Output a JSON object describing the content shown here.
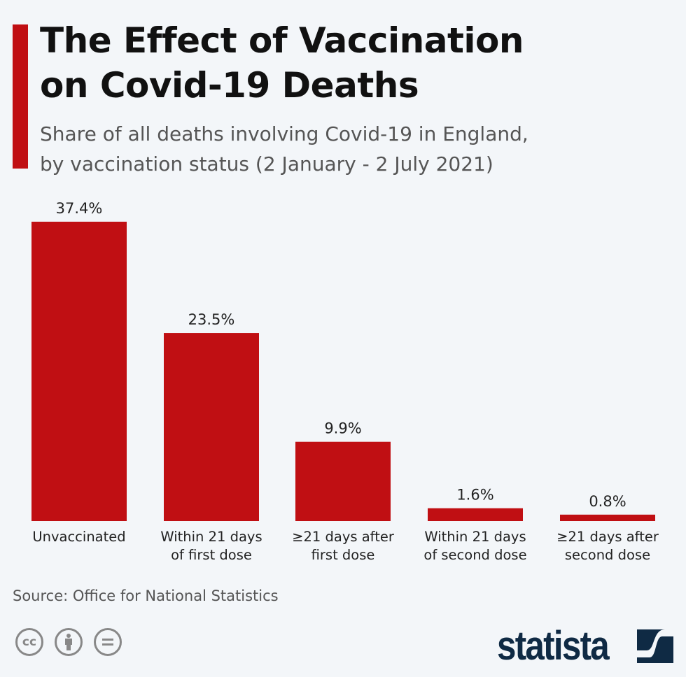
{
  "title_lines": [
    "The Effect of Vaccination",
    "on Covid-19 Deaths"
  ],
  "subtitle_lines": [
    "Share of all deaths involving Covid-19 in England,",
    "by vaccination status (2 January - 2 July 2021)"
  ],
  "source": "Source: Office for National Statistics",
  "brand": "statista",
  "license_icons": [
    "cc-icon",
    "attribution-icon",
    "no-derivatives-icon"
  ],
  "colors": {
    "bar": "#c00f13",
    "accent": "#c00f13",
    "brand": "#0f2a44"
  },
  "chart_data": {
    "type": "bar",
    "categories": [
      [
        "Unvaccinated"
      ],
      [
        "Within 21 days",
        "of first dose"
      ],
      [
        "≥21 days after",
        "first dose"
      ],
      [
        "Within 21 days",
        "of second dose"
      ],
      [
        "≥21 days after",
        "second dose"
      ]
    ],
    "values": [
      37.4,
      23.5,
      9.9,
      1.6,
      0.8
    ],
    "data_labels": [
      "37.4%",
      "23.5%",
      "9.9%",
      "1.6%",
      "0.8%"
    ],
    "unit": "%",
    "ylim": [
      0,
      37.4
    ],
    "grid": false,
    "legend": "none"
  }
}
